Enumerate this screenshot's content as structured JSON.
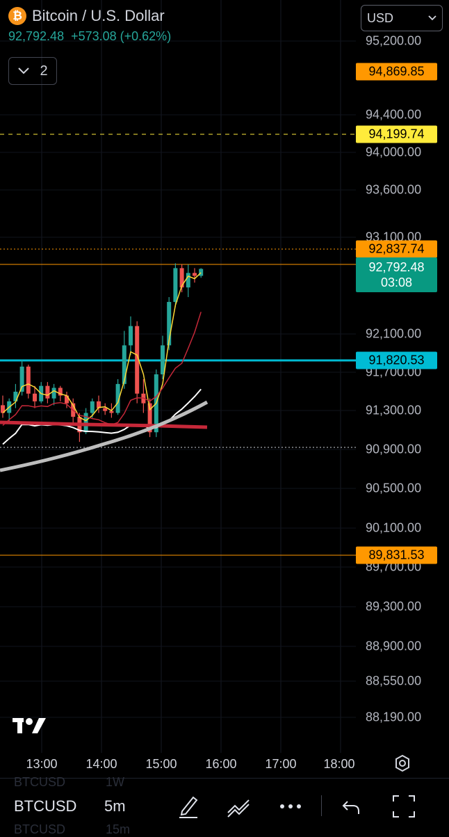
{
  "header": {
    "coin_symbol": "₿",
    "title": "Bitcoin / U.S. Dollar",
    "price": "92,792.48",
    "change": "+573.08 (+0.62%)",
    "indicator_count": "2"
  },
  "currency_select": {
    "value": "USD"
  },
  "price_axis": [
    "95,200.00",
    "94,400.00",
    "94,000.00",
    "93,600.00",
    "93,100.00",
    "92,100.00",
    "91,700.00",
    "91,300.00",
    "90,900.00",
    "90,500.00",
    "90,100.00",
    "89,700.00",
    "89,300.00",
    "88,900.00",
    "88,550.00",
    "88,190.00"
  ],
  "price_tags": [
    {
      "label": "94,869.85",
      "bg": "#ff9800",
      "fg": "#000000"
    },
    {
      "label": "94,199.74",
      "bg": "#ffeb3b",
      "fg": "#000000"
    },
    {
      "label": "92,837.74",
      "bg": "#ff9800",
      "fg": "#000000"
    },
    {
      "label": "91,820.53",
      "bg": "#00bcd4",
      "fg": "#000000"
    },
    {
      "label": "89,831.53",
      "bg": "#ff9800",
      "fg": "#000000"
    }
  ],
  "current_tag": {
    "price": "92,792.48",
    "countdown": "03:08",
    "bg": "#089981",
    "fg": "#ffffff"
  },
  "time_axis": [
    "13:00",
    "14:00",
    "15:00",
    "16:00",
    "17:00",
    "18:00"
  ],
  "toolbar": {
    "symbol": "BTCUSD",
    "interval": "5m",
    "ghost_symbol_above": "BTCUSD",
    "ghost_interval_above": "1W",
    "ghost_symbol_below": "BTCUSD",
    "ghost_interval_below": "15m"
  },
  "colors": {
    "up": "#26a69a",
    "down": "#ef5350",
    "background": "#000000"
  },
  "chart_data": {
    "type": "candlestick",
    "symbol": "BTCUSD",
    "interval": "5m",
    "candles": [
      {
        "o": 91380,
        "h": 91480,
        "l": 91250,
        "c": 91300
      },
      {
        "o": 91300,
        "h": 91450,
        "l": 91200,
        "c": 91420
      },
      {
        "o": 91420,
        "h": 91600,
        "l": 91350,
        "c": 91520
      },
      {
        "o": 91520,
        "h": 91850,
        "l": 91480,
        "c": 91780
      },
      {
        "o": 91780,
        "h": 91800,
        "l": 91450,
        "c": 91500
      },
      {
        "o": 91500,
        "h": 91580,
        "l": 91350,
        "c": 91420
      },
      {
        "o": 91420,
        "h": 91620,
        "l": 91400,
        "c": 91580
      },
      {
        "o": 91580,
        "h": 91620,
        "l": 91400,
        "c": 91450
      },
      {
        "o": 91450,
        "h": 91600,
        "l": 91380,
        "c": 91560
      },
      {
        "o": 91560,
        "h": 91580,
        "l": 91420,
        "c": 91480
      },
      {
        "o": 91480,
        "h": 91520,
        "l": 91350,
        "c": 91400
      },
      {
        "o": 91400,
        "h": 91450,
        "l": 91200,
        "c": 91260
      },
      {
        "o": 91260,
        "h": 91300,
        "l": 91000,
        "c": 91100
      },
      {
        "o": 91100,
        "h": 91350,
        "l": 91080,
        "c": 91300
      },
      {
        "o": 91300,
        "h": 91450,
        "l": 91250,
        "c": 91420
      },
      {
        "o": 91420,
        "h": 91480,
        "l": 91300,
        "c": 91350
      },
      {
        "o": 91350,
        "h": 91400,
        "l": 91280,
        "c": 91320
      },
      {
        "o": 91320,
        "h": 91400,
        "l": 91250,
        "c": 91300
      },
      {
        "o": 91300,
        "h": 91650,
        "l": 91280,
        "c": 91600
      },
      {
        "o": 91600,
        "h": 92150,
        "l": 91550,
        "c": 92000
      },
      {
        "o": 92000,
        "h": 92300,
        "l": 91900,
        "c": 92200
      },
      {
        "o": 92200,
        "h": 92250,
        "l": 91400,
        "c": 91500
      },
      {
        "o": 91500,
        "h": 91650,
        "l": 91300,
        "c": 91400
      },
      {
        "o": 91400,
        "h": 91450,
        "l": 91050,
        "c": 91100
      },
      {
        "o": 91100,
        "h": 91750,
        "l": 91050,
        "c": 91700
      },
      {
        "o": 91700,
        "h": 92100,
        "l": 91650,
        "c": 92000
      },
      {
        "o": 92000,
        "h": 92500,
        "l": 91950,
        "c": 92450
      },
      {
        "o": 92450,
        "h": 92850,
        "l": 92400,
        "c": 92800
      },
      {
        "o": 92800,
        "h": 92840,
        "l": 92550,
        "c": 92600
      },
      {
        "o": 92600,
        "h": 92838,
        "l": 92500,
        "c": 92750
      },
      {
        "o": 92750,
        "h": 92800,
        "l": 92650,
        "c": 92720
      },
      {
        "o": 92720,
        "h": 92800,
        "l": 92700,
        "c": 92792
      }
    ],
    "horizontal_levels": [
      94869.85,
      94199.74,
      92837.74,
      91820.53,
      89831.53
    ],
    "current_price": 92792.48
  }
}
